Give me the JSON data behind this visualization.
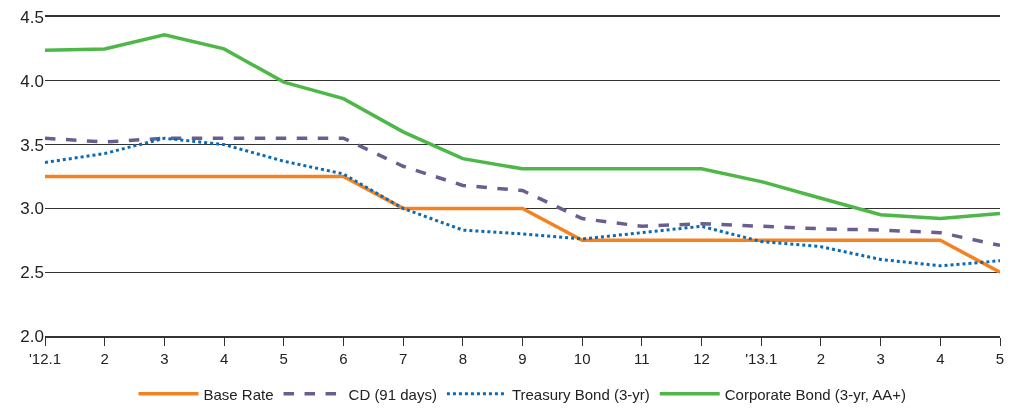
{
  "chart_data": {
    "type": "line",
    "categories": [
      "'12.1",
      "2",
      "3",
      "4",
      "5",
      "6",
      "7",
      "8",
      "9",
      "10",
      "11",
      "12",
      "'13.1",
      "2",
      "3",
      "4",
      "5"
    ],
    "series": [
      {
        "name": "Base Rate",
        "color": "#f58220",
        "line_style": "solid",
        "values": [
          3.25,
          3.25,
          3.25,
          3.25,
          3.25,
          3.25,
          3.0,
          3.0,
          3.0,
          2.75,
          2.75,
          2.75,
          2.75,
          2.75,
          2.75,
          2.75,
          2.5
        ]
      },
      {
        "name": "CD (91 days)",
        "color": "#6b5e8e",
        "line_style": "dashed",
        "values": [
          3.55,
          3.52,
          3.55,
          3.55,
          3.55,
          3.55,
          3.33,
          3.18,
          3.14,
          2.92,
          2.86,
          2.88,
          2.86,
          2.84,
          2.83,
          2.81,
          2.71
        ]
      },
      {
        "name": "Treasury Bond (3-yr)",
        "color": "#0a6ab4",
        "line_style": "dotted",
        "values": [
          3.36,
          3.43,
          3.55,
          3.5,
          3.37,
          3.27,
          3.0,
          2.83,
          2.8,
          2.76,
          2.81,
          2.86,
          2.74,
          2.7,
          2.6,
          2.55,
          2.59
        ]
      },
      {
        "name": "Corporate Bond (3-yr, AA+)",
        "color": "#4db848",
        "line_style": "solid",
        "values": [
          4.24,
          4.25,
          4.36,
          4.25,
          3.99,
          3.86,
          3.6,
          3.39,
          3.31,
          3.31,
          3.31,
          3.31,
          3.21,
          3.08,
          2.95,
          2.92,
          2.96
        ]
      }
    ],
    "ylim": [
      2.0,
      4.5
    ],
    "yticks": [
      {
        "value": 2,
        "label": "2.0"
      },
      {
        "value": 2.5,
        "label": "2.5"
      },
      {
        "value": 3,
        "label": "3.0"
      },
      {
        "value": 3.5,
        "label": "3.5"
      },
      {
        "value": 4,
        "label": "4.0"
      },
      {
        "value": 4.5,
        "label": "4.5"
      }
    ],
    "grid": "y",
    "legend": "bottom",
    "marker": "none"
  }
}
